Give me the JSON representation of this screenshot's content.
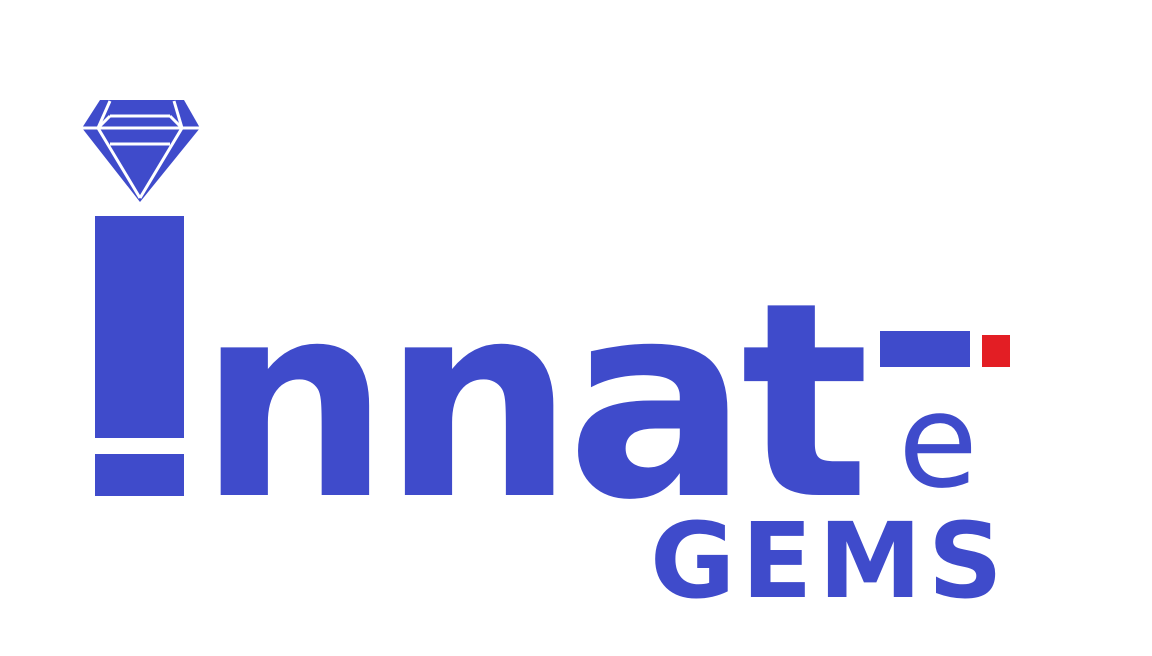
{
  "logo": {
    "brand_name": "Innate",
    "tagline": "GEMS",
    "colors": {
      "primary_blue": "#3F4BCB",
      "accent_red": "#E31E24",
      "facet_lines": "#FFFFFF",
      "background": "#FFFFFF"
    },
    "icon": "diamond-icon"
  }
}
